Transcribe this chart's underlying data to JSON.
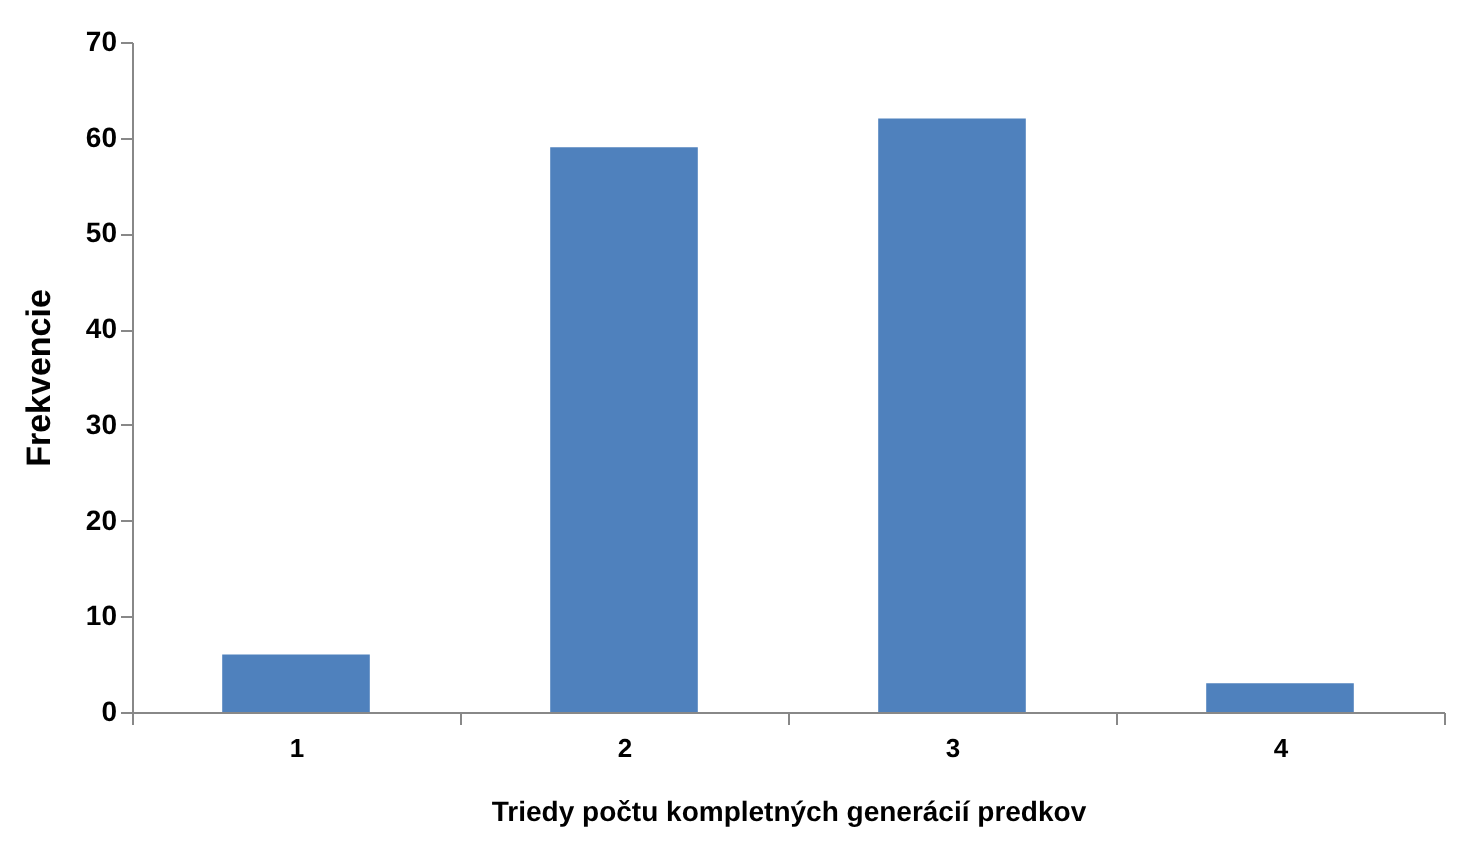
{
  "chart_data": {
    "type": "bar",
    "xlabel": "Triedy počtu kompletných generácií predkov",
    "ylabel": "Frekvencie",
    "categories": [
      "1",
      "2",
      "3",
      "4"
    ],
    "values": [
      6,
      59,
      62,
      3
    ],
    "color": "#4f81bd",
    "ylim": [
      0,
      70
    ],
    "yticks": [
      0,
      10,
      20,
      30,
      40,
      50,
      60,
      70
    ],
    "grid": false,
    "legend": false
  }
}
